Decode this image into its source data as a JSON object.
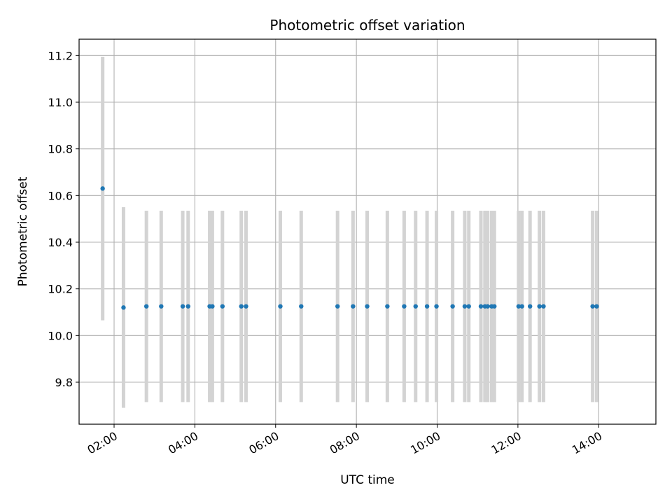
{
  "chart_data": {
    "type": "scatter",
    "title": "Photometric offset variation",
    "xlabel": "UTC time",
    "ylabel": "Photometric offset",
    "x_ticks": [
      "02:00",
      "04:00",
      "06:00",
      "08:00",
      "10:00",
      "12:00",
      "14:00"
    ],
    "y_ticks": [
      "9.8",
      "10.0",
      "10.2",
      "10.4",
      "10.6",
      "10.8",
      "11.0",
      "11.2"
    ],
    "xlim": [
      "01:08",
      "15:25"
    ],
    "ylim": [
      9.62,
      11.27
    ],
    "grid": true,
    "series": [
      {
        "marker_color": "#1f77b4",
        "errorbar_color": "#d3d3d3",
        "points": [
          {
            "x": "01:43",
            "y": 10.63,
            "err": 0.565
          },
          {
            "x": "02:14",
            "y": 10.12,
            "err": 0.43
          },
          {
            "x": "02:48",
            "y": 10.125,
            "err": 0.41
          },
          {
            "x": "03:10",
            "y": 10.125,
            "err": 0.41
          },
          {
            "x": "03:42",
            "y": 10.125,
            "err": 0.41
          },
          {
            "x": "03:50",
            "y": 10.125,
            "err": 0.41
          },
          {
            "x": "04:22",
            "y": 10.125,
            "err": 0.41
          },
          {
            "x": "04:26",
            "y": 10.125,
            "err": 0.41
          },
          {
            "x": "04:41",
            "y": 10.125,
            "err": 0.41
          },
          {
            "x": "05:09",
            "y": 10.125,
            "err": 0.41
          },
          {
            "x": "05:16",
            "y": 10.125,
            "err": 0.41
          },
          {
            "x": "06:07",
            "y": 10.125,
            "err": 0.41
          },
          {
            "x": "06:38",
            "y": 10.125,
            "err": 0.41
          },
          {
            "x": "07:32",
            "y": 10.125,
            "err": 0.41
          },
          {
            "x": "07:55",
            "y": 10.125,
            "err": 0.41
          },
          {
            "x": "08:16",
            "y": 10.125,
            "err": 0.41
          },
          {
            "x": "08:46",
            "y": 10.125,
            "err": 0.41
          },
          {
            "x": "09:11",
            "y": 10.125,
            "err": 0.41
          },
          {
            "x": "09:28",
            "y": 10.125,
            "err": 0.41
          },
          {
            "x": "09:45",
            "y": 10.125,
            "err": 0.41
          },
          {
            "x": "09:59",
            "y": 10.125,
            "err": 0.41
          },
          {
            "x": "10:23",
            "y": 10.125,
            "err": 0.41
          },
          {
            "x": "10:41",
            "y": 10.125,
            "err": 0.41
          },
          {
            "x": "10:47",
            "y": 10.125,
            "err": 0.41
          },
          {
            "x": "11:05",
            "y": 10.125,
            "err": 0.41
          },
          {
            "x": "11:11",
            "y": 10.125,
            "err": 0.41
          },
          {
            "x": "11:15",
            "y": 10.125,
            "err": 0.41
          },
          {
            "x": "11:21",
            "y": 10.125,
            "err": 0.41
          },
          {
            "x": "11:25",
            "y": 10.125,
            "err": 0.41
          },
          {
            "x": "12:01",
            "y": 10.125,
            "err": 0.41
          },
          {
            "x": "12:06",
            "y": 10.125,
            "err": 0.41
          },
          {
            "x": "12:18",
            "y": 10.125,
            "err": 0.41
          },
          {
            "x": "12:32",
            "y": 10.125,
            "err": 0.41
          },
          {
            "x": "12:38",
            "y": 10.125,
            "err": 0.41
          },
          {
            "x": "13:51",
            "y": 10.125,
            "err": 0.41
          },
          {
            "x": "13:57",
            "y": 10.125,
            "err": 0.41
          }
        ]
      }
    ]
  }
}
